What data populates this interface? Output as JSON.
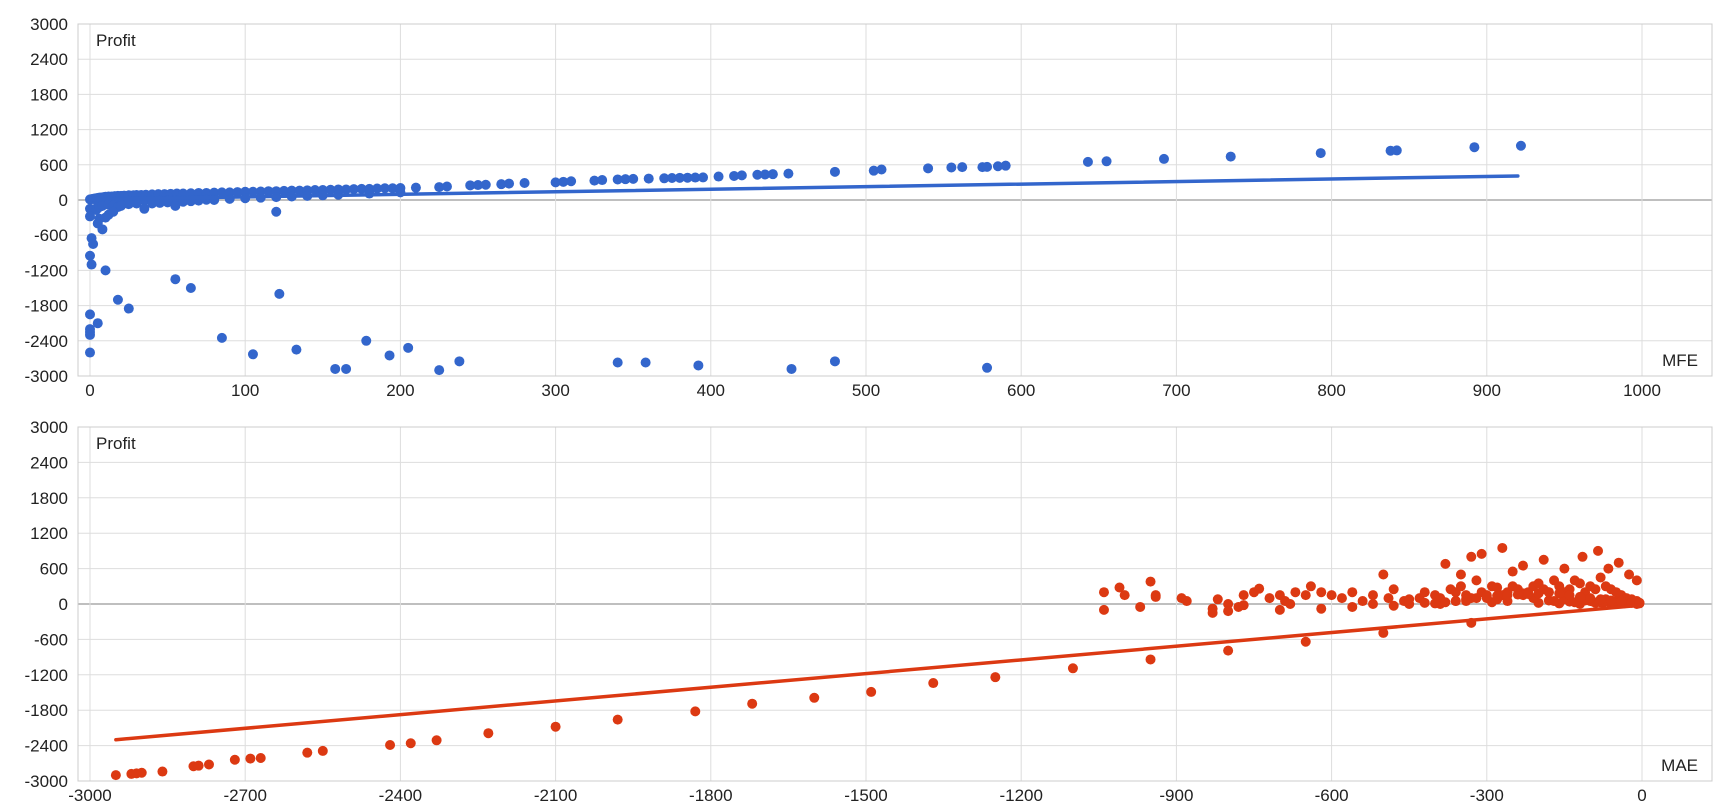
{
  "chart_data": [
    {
      "type": "scatter",
      "title": "",
      "ylabel": "Profit",
      "xlabel": "MFE",
      "xlim": [
        0,
        1000
      ],
      "ylim": [
        -3000,
        3000
      ],
      "x_ticks": [
        "0",
        "100",
        "200",
        "300",
        "400",
        "500",
        "600",
        "700",
        "800",
        "900",
        "1000"
      ],
      "y_ticks": [
        "3000",
        "2400",
        "1800",
        "1200",
        "600",
        "0",
        "-600",
        "-1200",
        "-1800",
        "-2400",
        "-3000"
      ],
      "grid": true,
      "color": "#3366cc",
      "trendline": {
        "x": [
          0,
          920
        ],
        "y": [
          10,
          410
        ]
      },
      "series": [
        {
          "x": [
            0,
            1,
            2,
            3,
            4,
            5,
            6,
            7,
            8,
            9,
            10,
            12,
            14,
            16,
            18,
            20,
            22,
            25,
            28,
            30,
            33,
            36,
            40,
            44,
            48,
            52,
            56,
            60,
            65,
            70,
            75,
            80,
            85,
            90,
            95,
            100,
            105,
            110,
            115,
            120,
            125,
            130,
            135,
            140,
            145,
            150,
            155,
            160,
            165,
            170,
            175,
            180,
            185,
            190,
            195,
            200,
            210,
            225,
            230,
            245,
            250,
            255,
            265,
            270,
            280,
            300,
            305,
            310,
            325,
            330,
            340,
            345,
            350,
            360,
            370,
            375,
            380,
            385,
            390,
            395,
            405,
            415,
            420,
            430,
            435,
            440,
            450,
            480,
            505,
            510,
            540,
            555,
            562,
            575,
            578,
            585,
            590,
            643,
            655,
            692,
            735,
            793,
            838,
            842,
            892,
            922,
            5,
            10,
            15,
            20,
            25,
            30,
            35,
            40,
            45,
            50,
            55,
            60,
            65,
            70,
            75,
            80,
            90,
            100,
            110,
            120,
            130,
            140,
            150,
            160,
            180,
            200,
            0,
            2,
            4,
            6,
            8,
            12,
            15,
            20,
            25,
            30,
            35,
            40,
            45,
            50,
            55,
            60,
            65,
            70,
            80,
            120,
            0,
            1,
            2,
            6,
            8,
            12,
            18,
            0,
            5,
            10,
            15,
            20,
            25,
            0,
            0,
            0,
            0,
            0,
            1,
            5,
            10,
            18,
            25,
            55,
            65,
            85,
            105,
            122,
            133,
            158,
            165,
            178,
            193,
            205,
            225,
            238,
            340,
            358,
            392,
            452,
            480,
            578
          ],
          "y": [
            10,
            15,
            20,
            25,
            30,
            35,
            40,
            40,
            45,
            50,
            55,
            60,
            60,
            65,
            70,
            70,
            75,
            80,
            80,
            85,
            85,
            90,
            95,
            100,
            100,
            105,
            110,
            110,
            115,
            120,
            120,
            125,
            130,
            130,
            135,
            140,
            140,
            145,
            150,
            150,
            155,
            160,
            160,
            165,
            170,
            170,
            175,
            180,
            180,
            185,
            190,
            190,
            195,
            200,
            200,
            205,
            210,
            220,
            230,
            250,
            255,
            260,
            270,
            280,
            290,
            300,
            310,
            320,
            330,
            340,
            350,
            355,
            360,
            365,
            370,
            375,
            378,
            380,
            383,
            385,
            400,
            410,
            420,
            430,
            435,
            440,
            450,
            480,
            500,
            520,
            540,
            555,
            560,
            560,
            565,
            575,
            585,
            650,
            660,
            700,
            740,
            800,
            840,
            845,
            900,
            925,
            -30,
            -25,
            -20,
            -20,
            -15,
            -15,
            -10,
            -10,
            -8,
            -5,
            -5,
            -3,
            0,
            0,
            5,
            10,
            20,
            30,
            40,
            50,
            60,
            70,
            80,
            90,
            110,
            130,
            -150,
            -160,
            -170,
            -120,
            -100,
            -80,
            -90,
            -80,
            -70,
            -60,
            -150,
            -60,
            -50,
            -40,
            -100,
            -30,
            -20,
            -10,
            0,
            -200,
            -280,
            -650,
            -750,
            -320,
            -500,
            -250,
            -120,
            -950,
            -400,
            -300,
            -200,
            -100,
            -50,
            -1950,
            -2200,
            -2300,
            -2600,
            -2250,
            -1100,
            -2100,
            -1200,
            -1700,
            -1850,
            -1350,
            -1500,
            -2350,
            -2630,
            -1600,
            -2550,
            -2880,
            -2880,
            -2400,
            -2650,
            -2520,
            -2900,
            -2750,
            -2770,
            -2770,
            -2820,
            -2880,
            -2750,
            -2860
          ]
        }
      ]
    },
    {
      "type": "scatter",
      "title": "",
      "ylabel": "Profit",
      "xlabel": "MAE",
      "xlim": [
        -3000,
        0
      ],
      "ylim": [
        -3000,
        3000
      ],
      "x_ticks": [
        "-3000",
        "-2700",
        "-2400",
        "-2100",
        "-1800",
        "-1500",
        "-1200",
        "-900",
        "-600",
        "-300",
        "0"
      ],
      "y_ticks": [
        "3000",
        "2400",
        "1800",
        "1200",
        "600",
        "0",
        "-600",
        "-1200",
        "-1800",
        "-2400",
        "-3000"
      ],
      "grid": true,
      "color": "#dc3912",
      "trendline": {
        "x": [
          -2950,
          0
        ],
        "y": [
          -2300,
          -20
        ]
      },
      "series": [
        {
          "x": [
            -2950,
            -2920,
            -2910,
            -2900,
            -2860,
            -2800,
            -2790,
            -2770,
            -2720,
            -2690,
            -2670,
            -2580,
            -2550,
            -2420,
            -2380,
            -2330,
            -2230,
            -2100,
            -1980,
            -1830,
            -1720,
            -1600,
            -1490,
            -1370,
            -1250,
            -1100,
            -950,
            -800,
            -650,
            -500,
            -330,
            -1040,
            -1010,
            -1000,
            -950,
            -940,
            -890,
            -830,
            -820,
            -800,
            -780,
            -770,
            -750,
            -740,
            -720,
            -700,
            -690,
            -670,
            -650,
            -640,
            -620,
            -600,
            -580,
            -560,
            -540,
            -520,
            -500,
            -490,
            -480,
            -460,
            -450,
            -430,
            -420,
            -400,
            -390,
            -380,
            -370,
            -360,
            -350,
            -340,
            -330,
            -320,
            -310,
            -300,
            -290,
            -280,
            -270,
            -260,
            -250,
            -240,
            -230,
            -220,
            -210,
            -200,
            -190,
            -180,
            -170,
            -160,
            -150,
            -140,
            -130,
            -120,
            -110,
            -100,
            -90,
            -80,
            -70,
            -60,
            -50,
            -40,
            -30,
            -20,
            -10,
            -5,
            -390,
            -340,
            -330,
            -290,
            -280,
            -200,
            -180,
            -160,
            -140,
            -120,
            -100,
            -90,
            -80,
            -70,
            -60,
            -50,
            -40,
            -30,
            -20,
            -10,
            -1040,
            -970,
            -940,
            -880,
            -830,
            -800,
            -770,
            -700,
            -680,
            -620,
            -560,
            -520,
            -480,
            -450,
            -420,
            -360,
            -300,
            -260,
            -230,
            -210,
            -170,
            -150,
            -130,
            -110,
            -95,
            -75,
            -55,
            -35,
            -15,
            -5,
            -400,
            -380,
            -360,
            -340,
            -320,
            -300,
            -280,
            -260,
            -240,
            -220,
            -200,
            -180,
            -160,
            -140,
            -120,
            -100,
            -80,
            -60,
            -40,
            -20,
            -5,
            -350,
            -310,
            -270,
            -250,
            -230,
            -190,
            -150,
            -115,
            -85,
            -65,
            -45,
            -25,
            -10
          ],
          "y": [
            -2900,
            -2880,
            -2870,
            -2860,
            -2840,
            -2750,
            -2740,
            -2720,
            -2640,
            -2620,
            -2610,
            -2520,
            -2490,
            -2390,
            -2360,
            -2310,
            -2190,
            -2080,
            -1960,
            -1820,
            -1690,
            -1590,
            -1490,
            -1340,
            -1240,
            -1090,
            -940,
            -790,
            -640,
            -490,
            -320,
            200,
            280,
            150,
            380,
            120,
            100,
            -150,
            80,
            0,
            -50,
            150,
            200,
            260,
            100,
            150,
            50,
            200,
            150,
            300,
            200,
            150,
            100,
            200,
            50,
            150,
            500,
            100,
            250,
            50,
            0,
            100,
            200,
            150,
            100,
            680,
            250,
            200,
            300,
            150,
            800,
            400,
            200,
            150,
            300,
            280,
            150,
            200,
            300,
            250,
            180,
            200,
            300,
            350,
            250,
            200,
            400,
            300,
            200,
            250,
            400,
            350,
            200,
            300,
            250,
            450,
            300,
            250,
            200,
            150,
            100,
            80,
            50,
            20,
            0,
            50,
            100,
            30,
            80,
            20,
            60,
            10,
            40,
            0,
            50,
            20,
            30,
            80,
            10,
            40,
            60,
            20,
            30,
            0,
            -100,
            -50,
            150,
            50,
            -80,
            -120,
            -20,
            -100,
            0,
            -80,
            -50,
            0,
            -30,
            80,
            20,
            50,
            100,
            50,
            150,
            100,
            50,
            80,
            30,
            60,
            40,
            20,
            30,
            10,
            40,
            20,
            10,
            30,
            50,
            80,
            100,
            120,
            140,
            150,
            160,
            170,
            180,
            200,
            180,
            150,
            120,
            100,
            80,
            60,
            40,
            20,
            10,
            500,
            850,
            950,
            550,
            650,
            750,
            600,
            800,
            900,
            600,
            700,
            500,
            400
          ]
        }
      ]
    }
  ]
}
